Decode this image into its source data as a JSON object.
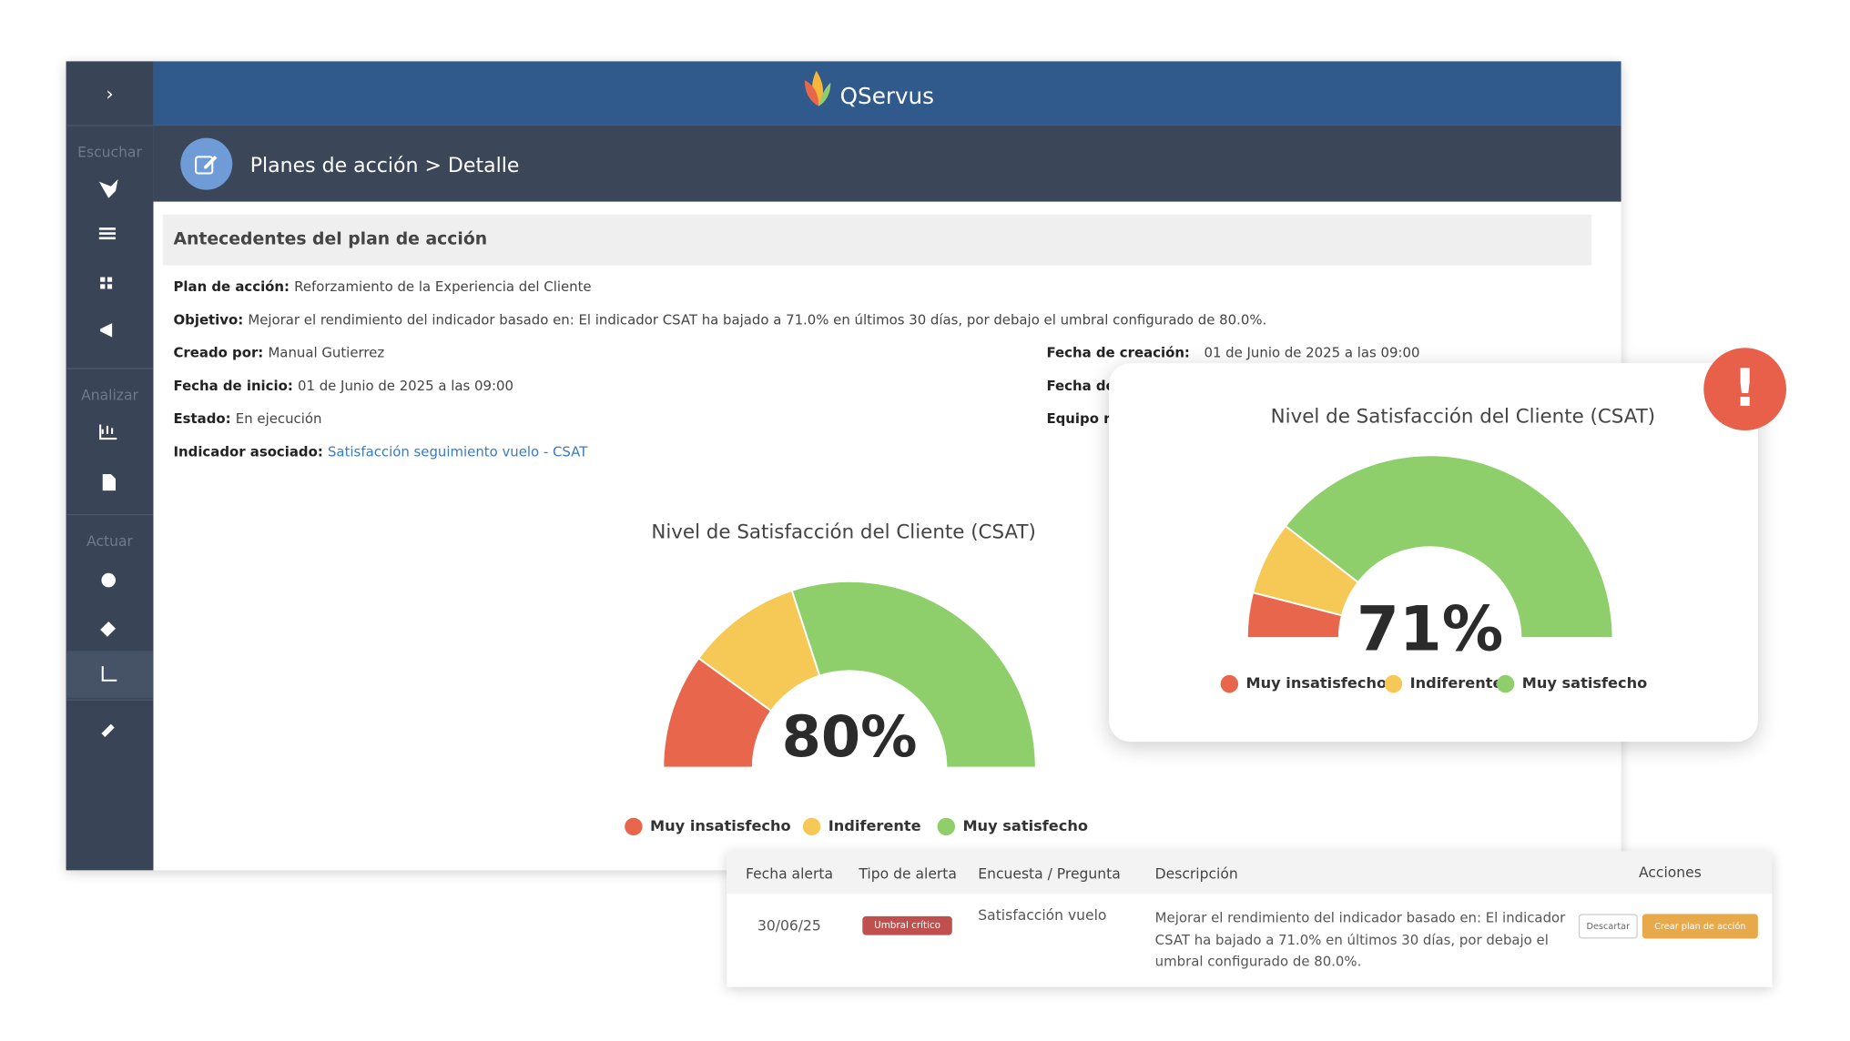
{
  "header": {
    "brand": "QServus",
    "breadcrumb": "Planes de acción > Detalle"
  },
  "sidebar": {
    "toggle": "›",
    "sections": [
      "Escuchar",
      "Analizar",
      "Actuar"
    ]
  },
  "details": {
    "title": "Antecedentes del plan de acción",
    "fields": [
      {
        "label": "Plan de acción:",
        "value": "Reforzamiento de la Experiencia del Cliente"
      },
      {
        "label": "Objetivo:",
        "value": "Mejorar el rendimiento del indicador basado en: El indicador CSAT ha bajado a 71.0% en últimos 30 días, por debajo el umbral configurado de 80.0%."
      },
      {
        "label": "Creado por:",
        "value": "Manual Gutierrez"
      },
      {
        "label": "Fecha de inicio:",
        "value": "01 de Junio de 2025 a las 09:00"
      },
      {
        "label": "Estado:",
        "value": "En ejecución"
      },
      {
        "label": "Indicador asociado:",
        "value": "Satisfacción seguimiento vuelo - CSAT"
      }
    ],
    "right_fields": [
      {
        "label": "Fecha de creación:",
        "value": "01 de Junio de 2025 a las 09:00"
      },
      {
        "label": "Fecha de"
      },
      {
        "label": "Equipo r"
      }
    ]
  },
  "chart_data": [
    {
      "type": "gauge",
      "title": "Nivel de Satisfacción del Cliente (CSAT)",
      "center_label": "80%",
      "categories": [
        "Muy insatisfecho",
        "Indiferente",
        "Muy satisfecho"
      ],
      "values": [
        20,
        20,
        60
      ],
      "colors": [
        "#e8674c",
        "#f6c957",
        "#8ecf6c"
      ]
    },
    {
      "type": "gauge",
      "title": "Nivel de Satisfacción del Cliente (CSAT)",
      "center_label": "71%",
      "categories": [
        "Muy insatisfecho",
        "Indiferente",
        "Muy satisfecho"
      ],
      "values": [
        8,
        13,
        79
      ],
      "colors": [
        "#e8674c",
        "#f6c957",
        "#8ecf6c"
      ]
    }
  ],
  "alert": {
    "icon": "!"
  },
  "table": {
    "headers": [
      "Fecha alerta",
      "Tipo de alerta",
      "Encuesta / Pregunta",
      "Descripción",
      "Acciones"
    ],
    "rows": [
      [
        "30/06/25",
        "Umbral crítico",
        "Satisfacción vuelo",
        "Mejorar el rendimiento del indicador basado en: El indicador CSAT ha bajado a 71.0% en últimos 30 días, por debajo el umbral configurado de 80.0%."
      ]
    ],
    "actions": [
      "Descartar",
      "Crear plan de acción"
    ]
  }
}
